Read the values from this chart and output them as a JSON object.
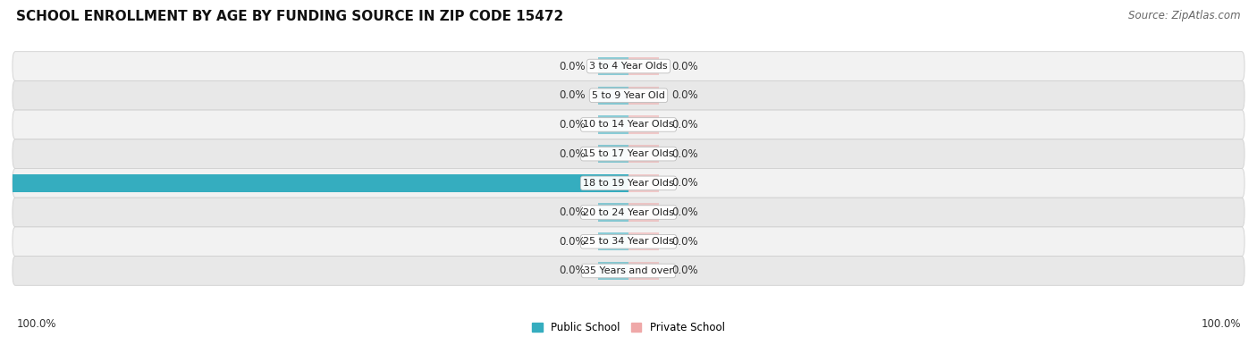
{
  "title": "SCHOOL ENROLLMENT BY AGE BY FUNDING SOURCE IN ZIP CODE 15472",
  "source": "Source: ZipAtlas.com",
  "categories": [
    "3 to 4 Year Olds",
    "5 to 9 Year Old",
    "10 to 14 Year Olds",
    "15 to 17 Year Olds",
    "18 to 19 Year Olds",
    "20 to 24 Year Olds",
    "25 to 34 Year Olds",
    "35 Years and over"
  ],
  "public_values": [
    0.0,
    0.0,
    0.0,
    0.0,
    100.0,
    0.0,
    0.0,
    0.0
  ],
  "private_values": [
    0.0,
    0.0,
    0.0,
    0.0,
    0.0,
    0.0,
    0.0,
    0.0
  ],
  "public_color": "#35ADBF",
  "private_color": "#EFA8A8",
  "public_label": "Public School",
  "private_label": "Private School",
  "bg_color": "#ffffff",
  "row_color_odd": "#f5f5f5",
  "row_color_even": "#ebebeb",
  "title_fontsize": 11,
  "source_fontsize": 8.5,
  "label_fontsize": 8.5,
  "bar_height": 0.62,
  "xlim_left": -100,
  "xlim_right": 100,
  "stub_size": 5,
  "bottom_left_label": "100.0%",
  "bottom_right_label": "100.0%"
}
